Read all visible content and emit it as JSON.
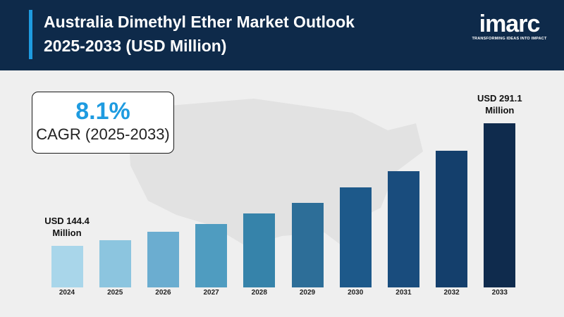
{
  "chart_data": {
    "type": "bar",
    "title": "Australia Dimethyl Ether Market Outlook 2025-2033 (USD Million)",
    "categories": [
      "2024",
      "2025",
      "2026",
      "2027",
      "2028",
      "2029",
      "2030",
      "2031",
      "2032",
      "2033"
    ],
    "values": [
      144.4,
      151.1,
      161.3,
      170.5,
      183.2,
      195.8,
      214.4,
      233.7,
      258.2,
      291.1
    ],
    "value_labels": [
      "USD 144.4 Million",
      null,
      null,
      null,
      null,
      null,
      null,
      null,
      null,
      "USD 291.1 Million"
    ],
    "colors": [
      "#a9d6ea",
      "#8cc5df",
      "#6badd0",
      "#4f9cc0",
      "#3683aa",
      "#2d6e98",
      "#1d598a",
      "#194c7d",
      "#143f6c",
      "#0f2b4d"
    ]
  },
  "cagr": {
    "value": "8.1%",
    "caption": "CAGR (2025-2033)"
  },
  "logo": {
    "name": "imarc",
    "tagline": "TRANSFORMING IDEAS INTO IMPACT"
  }
}
